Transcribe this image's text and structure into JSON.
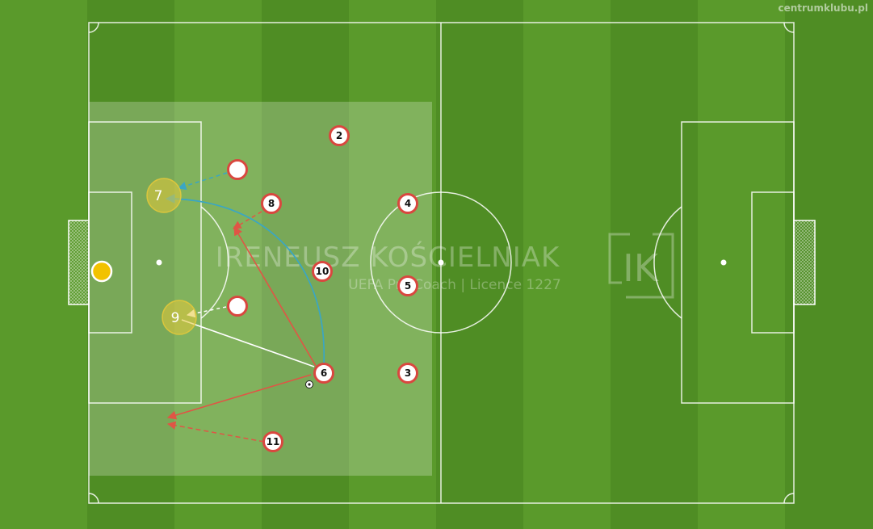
{
  "site_label": "centrumklubu.pl",
  "watermark": {
    "name": "IRENEUSZ KOŚCIELNIAK",
    "subtitle": "UEFA Pro Coach  |  Licence 1227",
    "logo": "IK"
  },
  "colors": {
    "grass_light": "#62a42f",
    "grass_dark": "#4f8d24",
    "team_ring": "#d9473f",
    "highlight": "#e6c93a",
    "goalkeeper": "#f2c200",
    "pass_red": "#e05545",
    "pass_blue": "#3aa6c4"
  },
  "players": {
    "p2": "2",
    "p3": "3",
    "p4": "4",
    "p5": "5",
    "p6": "6",
    "p8": "8",
    "p10": "10",
    "p11": "11",
    "h7": "7",
    "h9": "9"
  }
}
